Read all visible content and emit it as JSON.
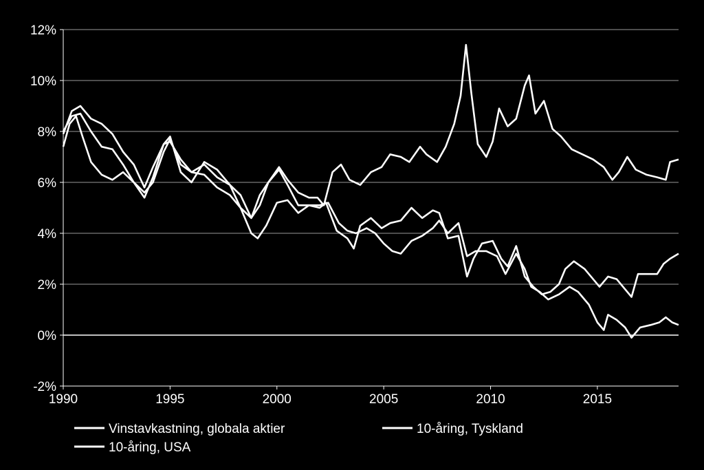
{
  "chart_data": {
    "type": "line",
    "title": "",
    "xlabel": "",
    "ylabel": "",
    "xlim": [
      1990,
      2018.8
    ],
    "ylim": [
      -2,
      12
    ],
    "x_ticks": [
      1990,
      1995,
      2000,
      2005,
      2010,
      2015
    ],
    "x_tick_labels": [
      "1990",
      "1995",
      "2000",
      "2005",
      "2010",
      "2015"
    ],
    "y_ticks": [
      -2,
      0,
      2,
      4,
      6,
      8,
      10,
      12
    ],
    "y_tick_labels": [
      "-2%",
      "0%",
      "2%",
      "4%",
      "6%",
      "8%",
      "10%",
      "12%"
    ],
    "grid": "horizontal",
    "legend_position": "bottom",
    "line_color": "#ffffff",
    "background_color": "#000000",
    "series": [
      {
        "name": "Vinstavkastning, globala aktier",
        "points": [
          [
            1990.0,
            7.4
          ],
          [
            1990.3,
            8.3
          ],
          [
            1990.6,
            8.6
          ],
          [
            1990.9,
            7.8
          ],
          [
            1991.3,
            6.8
          ],
          [
            1991.8,
            6.3
          ],
          [
            1992.3,
            6.1
          ],
          [
            1992.8,
            6.4
          ],
          [
            1993.3,
            6.0
          ],
          [
            1993.8,
            5.6
          ],
          [
            1994.2,
            6.0
          ],
          [
            1994.7,
            7.2
          ],
          [
            1995.0,
            7.7
          ],
          [
            1995.5,
            6.7
          ],
          [
            1996.0,
            6.4
          ],
          [
            1996.6,
            6.7
          ],
          [
            1997.2,
            6.2
          ],
          [
            1997.8,
            5.9
          ],
          [
            1998.3,
            5.0
          ],
          [
            1998.8,
            4.6
          ],
          [
            1999.2,
            5.5
          ],
          [
            1999.6,
            6.0
          ],
          [
            2000.1,
            6.6
          ],
          [
            2000.5,
            6.1
          ],
          [
            2001.0,
            5.6
          ],
          [
            2001.5,
            5.4
          ],
          [
            2001.9,
            5.4
          ],
          [
            2002.2,
            5.1
          ],
          [
            2002.6,
            6.4
          ],
          [
            2003.0,
            6.7
          ],
          [
            2003.4,
            6.1
          ],
          [
            2003.9,
            5.9
          ],
          [
            2004.4,
            6.4
          ],
          [
            2004.9,
            6.6
          ],
          [
            2005.3,
            7.1
          ],
          [
            2005.8,
            7.0
          ],
          [
            2006.2,
            6.8
          ],
          [
            2006.7,
            7.4
          ],
          [
            2007.0,
            7.1
          ],
          [
            2007.5,
            6.8
          ],
          [
            2007.9,
            7.4
          ],
          [
            2008.3,
            8.3
          ],
          [
            2008.6,
            9.4
          ],
          [
            2008.85,
            11.4
          ],
          [
            2009.1,
            9.5
          ],
          [
            2009.4,
            7.5
          ],
          [
            2009.8,
            7.0
          ],
          [
            2010.1,
            7.6
          ],
          [
            2010.4,
            8.9
          ],
          [
            2010.8,
            8.2
          ],
          [
            2011.2,
            8.5
          ],
          [
            2011.6,
            9.8
          ],
          [
            2011.8,
            10.2
          ],
          [
            2012.1,
            8.7
          ],
          [
            2012.5,
            9.2
          ],
          [
            2012.9,
            8.1
          ],
          [
            2013.3,
            7.8
          ],
          [
            2013.8,
            7.3
          ],
          [
            2014.3,
            7.1
          ],
          [
            2014.8,
            6.9
          ],
          [
            2015.3,
            6.6
          ],
          [
            2015.7,
            6.1
          ],
          [
            2016.0,
            6.4
          ],
          [
            2016.4,
            7.0
          ],
          [
            2016.8,
            6.5
          ],
          [
            2017.3,
            6.3
          ],
          [
            2017.8,
            6.2
          ],
          [
            2018.2,
            6.1
          ],
          [
            2018.4,
            6.8
          ],
          [
            2018.8,
            6.9
          ]
        ]
      },
      {
        "name": "10-åring, Tyskland",
        "points": [
          [
            1990.0,
            7.9
          ],
          [
            1990.4,
            8.8
          ],
          [
            1990.8,
            9.0
          ],
          [
            1991.3,
            8.5
          ],
          [
            1991.8,
            8.3
          ],
          [
            1992.3,
            7.9
          ],
          [
            1992.8,
            7.2
          ],
          [
            1993.3,
            6.7
          ],
          [
            1993.8,
            5.8
          ],
          [
            1994.2,
            6.6
          ],
          [
            1994.7,
            7.5
          ],
          [
            1995.0,
            7.6
          ],
          [
            1995.5,
            6.9
          ],
          [
            1996.0,
            6.4
          ],
          [
            1996.6,
            6.3
          ],
          [
            1997.2,
            5.8
          ],
          [
            1997.8,
            5.5
          ],
          [
            1998.3,
            5.0
          ],
          [
            1998.8,
            4.0
          ],
          [
            1999.1,
            3.8
          ],
          [
            1999.5,
            4.3
          ],
          [
            2000.0,
            5.2
          ],
          [
            2000.5,
            5.3
          ],
          [
            2001.0,
            4.8
          ],
          [
            2001.5,
            5.1
          ],
          [
            2002.0,
            5.1
          ],
          [
            2002.4,
            5.2
          ],
          [
            2002.9,
            4.4
          ],
          [
            2003.3,
            4.1
          ],
          [
            2003.7,
            4.0
          ],
          [
            2004.2,
            4.2
          ],
          [
            2004.6,
            4.0
          ],
          [
            2005.0,
            3.6
          ],
          [
            2005.4,
            3.3
          ],
          [
            2005.8,
            3.2
          ],
          [
            2006.3,
            3.7
          ],
          [
            2006.8,
            3.9
          ],
          [
            2007.3,
            4.2
          ],
          [
            2007.6,
            4.5
          ],
          [
            2008.0,
            4.0
          ],
          [
            2008.5,
            4.4
          ],
          [
            2008.9,
            3.1
          ],
          [
            2009.3,
            3.3
          ],
          [
            2009.8,
            3.3
          ],
          [
            2010.3,
            3.1
          ],
          [
            2010.7,
            2.4
          ],
          [
            2011.2,
            3.2
          ],
          [
            2011.6,
            2.6
          ],
          [
            2011.9,
            1.9
          ],
          [
            2012.3,
            1.7
          ],
          [
            2012.7,
            1.4
          ],
          [
            2013.2,
            1.6
          ],
          [
            2013.7,
            1.9
          ],
          [
            2014.1,
            1.7
          ],
          [
            2014.6,
            1.2
          ],
          [
            2015.0,
            0.5
          ],
          [
            2015.3,
            0.2
          ],
          [
            2015.5,
            0.8
          ],
          [
            2015.9,
            0.6
          ],
          [
            2016.3,
            0.3
          ],
          [
            2016.6,
            -0.1
          ],
          [
            2017.0,
            0.3
          ],
          [
            2017.5,
            0.4
          ],
          [
            2017.9,
            0.5
          ],
          [
            2018.2,
            0.7
          ],
          [
            2018.5,
            0.5
          ],
          [
            2018.8,
            0.4
          ]
        ]
      },
      {
        "name": "10-åring, USA",
        "points": [
          [
            1990.0,
            8.0
          ],
          [
            1990.4,
            8.6
          ],
          [
            1990.8,
            8.7
          ],
          [
            1991.3,
            8.0
          ],
          [
            1991.8,
            7.4
          ],
          [
            1992.3,
            7.3
          ],
          [
            1992.8,
            6.7
          ],
          [
            1993.3,
            6.0
          ],
          [
            1993.8,
            5.4
          ],
          [
            1994.2,
            6.2
          ],
          [
            1994.7,
            7.5
          ],
          [
            1995.0,
            7.8
          ],
          [
            1995.5,
            6.4
          ],
          [
            1996.0,
            6.0
          ],
          [
            1996.6,
            6.8
          ],
          [
            1997.2,
            6.5
          ],
          [
            1997.8,
            5.9
          ],
          [
            1998.3,
            5.5
          ],
          [
            1998.8,
            4.6
          ],
          [
            1999.2,
            5.1
          ],
          [
            1999.6,
            6.0
          ],
          [
            2000.1,
            6.5
          ],
          [
            2000.5,
            5.9
          ],
          [
            2001.0,
            5.1
          ],
          [
            2001.5,
            5.1
          ],
          [
            2002.0,
            5.0
          ],
          [
            2002.3,
            5.2
          ],
          [
            2002.8,
            4.1
          ],
          [
            2003.3,
            3.8
          ],
          [
            2003.6,
            3.4
          ],
          [
            2003.9,
            4.3
          ],
          [
            2004.4,
            4.6
          ],
          [
            2004.9,
            4.2
          ],
          [
            2005.3,
            4.4
          ],
          [
            2005.8,
            4.5
          ],
          [
            2006.3,
            5.0
          ],
          [
            2006.8,
            4.6
          ],
          [
            2007.3,
            4.9
          ],
          [
            2007.6,
            4.8
          ],
          [
            2008.0,
            3.8
          ],
          [
            2008.5,
            3.9
          ],
          [
            2008.9,
            2.3
          ],
          [
            2009.2,
            3.0
          ],
          [
            2009.6,
            3.6
          ],
          [
            2010.1,
            3.7
          ],
          [
            2010.5,
            3.0
          ],
          [
            2010.8,
            2.7
          ],
          [
            2011.2,
            3.5
          ],
          [
            2011.6,
            2.3
          ],
          [
            2012.0,
            1.9
          ],
          [
            2012.4,
            1.6
          ],
          [
            2012.8,
            1.7
          ],
          [
            2013.2,
            2.0
          ],
          [
            2013.5,
            2.6
          ],
          [
            2013.9,
            2.9
          ],
          [
            2014.4,
            2.6
          ],
          [
            2014.8,
            2.2
          ],
          [
            2015.1,
            1.9
          ],
          [
            2015.5,
            2.3
          ],
          [
            2015.9,
            2.2
          ],
          [
            2016.3,
            1.8
          ],
          [
            2016.6,
            1.5
          ],
          [
            2016.9,
            2.4
          ],
          [
            2017.3,
            2.4
          ],
          [
            2017.8,
            2.4
          ],
          [
            2018.1,
            2.8
          ],
          [
            2018.4,
            3.0
          ],
          [
            2018.8,
            3.2
          ]
        ]
      }
    ]
  }
}
